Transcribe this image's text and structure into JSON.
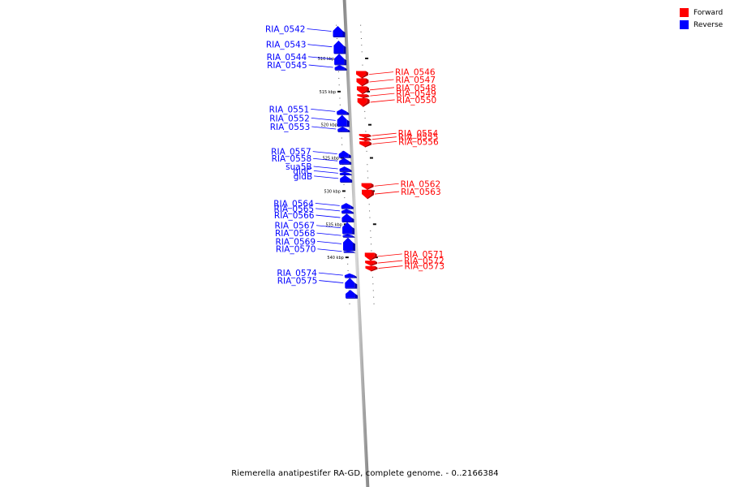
{
  "legend": {
    "forward": {
      "label": "Forward",
      "color": "#ff0000"
    },
    "reverse": {
      "label": "Reverse",
      "color": "#0000ff"
    }
  },
  "caption": "Riemerella anatipestifer RA-GD, complete genome. - 0..2166384",
  "ticks": [
    {
      "kbp": 510,
      "label": "510 kbp"
    },
    {
      "kbp": 515,
      "label": "515 kbp"
    },
    {
      "kbp": 520,
      "label": "520 kbp"
    },
    {
      "kbp": 525,
      "label": "525 kbp"
    },
    {
      "kbp": 530,
      "label": "530 kbp"
    },
    {
      "kbp": 535,
      "label": "535 kbp"
    },
    {
      "kbp": 540,
      "label": "540 kbp"
    }
  ],
  "genes": [
    {
      "name": "RIA_0542",
      "strand": "reverse",
      "start": 505.1,
      "end": 506.7
    },
    {
      "name": "RIA_0543",
      "strand": "reverse",
      "start": 507.3,
      "end": 509.2
    },
    {
      "name": "RIA_0544",
      "strand": "reverse",
      "start": 509.3,
      "end": 510.9
    },
    {
      "name": "RIA_0545",
      "strand": "reverse",
      "start": 511.0,
      "end": 511.7
    },
    {
      "name": "RIA_0546",
      "strand": "forward",
      "start": 511.9,
      "end": 512.9
    },
    {
      "name": "RIA_0547",
      "strand": "forward",
      "start": 513.0,
      "end": 514.1
    },
    {
      "name": "RIA_0548",
      "strand": "forward",
      "start": 514.2,
      "end": 515.3
    },
    {
      "name": "RIA_0549",
      "strand": "forward",
      "start": 515.4,
      "end": 515.9
    },
    {
      "name": "RIA_0550",
      "strand": "forward",
      "start": 516.0,
      "end": 517.2
    },
    {
      "name": "RIA_0551",
      "strand": "reverse",
      "start": 517.6,
      "end": 518.4
    },
    {
      "name": "RIA_0552",
      "strand": "reverse",
      "start": 518.5,
      "end": 520.2
    },
    {
      "name": "RIA_0553",
      "strand": "reverse",
      "start": 520.3,
      "end": 521.0
    },
    {
      "name": "RIA_0554",
      "strand": "forward",
      "start": 521.4,
      "end": 521.9
    },
    {
      "name": "RIA_0555",
      "strand": "forward",
      "start": 522.0,
      "end": 522.4
    },
    {
      "name": "RIA_0556",
      "strand": "forward",
      "start": 522.5,
      "end": 523.3
    },
    {
      "name": "RIA_0557",
      "strand": "reverse",
      "start": 523.9,
      "end": 524.9
    },
    {
      "name": "RIA_0558",
      "strand": "reverse",
      "start": 525.0,
      "end": 525.9
    },
    {
      "name": "sua5B",
      "strand": "reverse",
      "start": 526.3,
      "end": 527.0
    },
    {
      "name": "gldC",
      "strand": "reverse",
      "start": 527.1,
      "end": 527.5
    },
    {
      "name": "gldB",
      "strand": "reverse",
      "start": 527.6,
      "end": 528.6
    },
    {
      "name": "RIA_0562",
      "strand": "forward",
      "start": 528.8,
      "end": 529.7
    },
    {
      "name": "RIA_0563",
      "strand": "forward",
      "start": 529.8,
      "end": 531.1
    },
    {
      "name": "RIA_0564",
      "strand": "reverse",
      "start": 531.8,
      "end": 532.6
    },
    {
      "name": "RIA_0565",
      "strand": "reverse",
      "start": 532.7,
      "end": 533.3
    },
    {
      "name": "RIA_0566",
      "strand": "reverse",
      "start": 533.4,
      "end": 534.6
    },
    {
      "name": "RIA_0567",
      "strand": "reverse",
      "start": 534.7,
      "end": 536.4
    },
    {
      "name": "RIA_0568",
      "strand": "reverse",
      "start": 536.5,
      "end": 536.9
    },
    {
      "name": "RIA_0569",
      "strand": "reverse",
      "start": 537.0,
      "end": 538.9
    },
    {
      "name": "RIA_0570",
      "strand": "reverse",
      "start": 539.0,
      "end": 539.2
    },
    {
      "name": "RIA_0571",
      "strand": "forward",
      "start": 539.3,
      "end": 540.4
    },
    {
      "name": "RIA_0572",
      "strand": "forward",
      "start": 540.5,
      "end": 541.2
    },
    {
      "name": "RIA_0573",
      "strand": "forward",
      "start": 541.3,
      "end": 542.0
    },
    {
      "name": "RIA_0574",
      "strand": "reverse",
      "start": 542.4,
      "end": 543.0
    },
    {
      "name": "RIA_0575",
      "strand": "reverse",
      "start": 543.1,
      "end": 544.6
    },
    {
      "name": "",
      "strand": "reverse",
      "start": 544.9,
      "end": 546.1
    }
  ]
}
